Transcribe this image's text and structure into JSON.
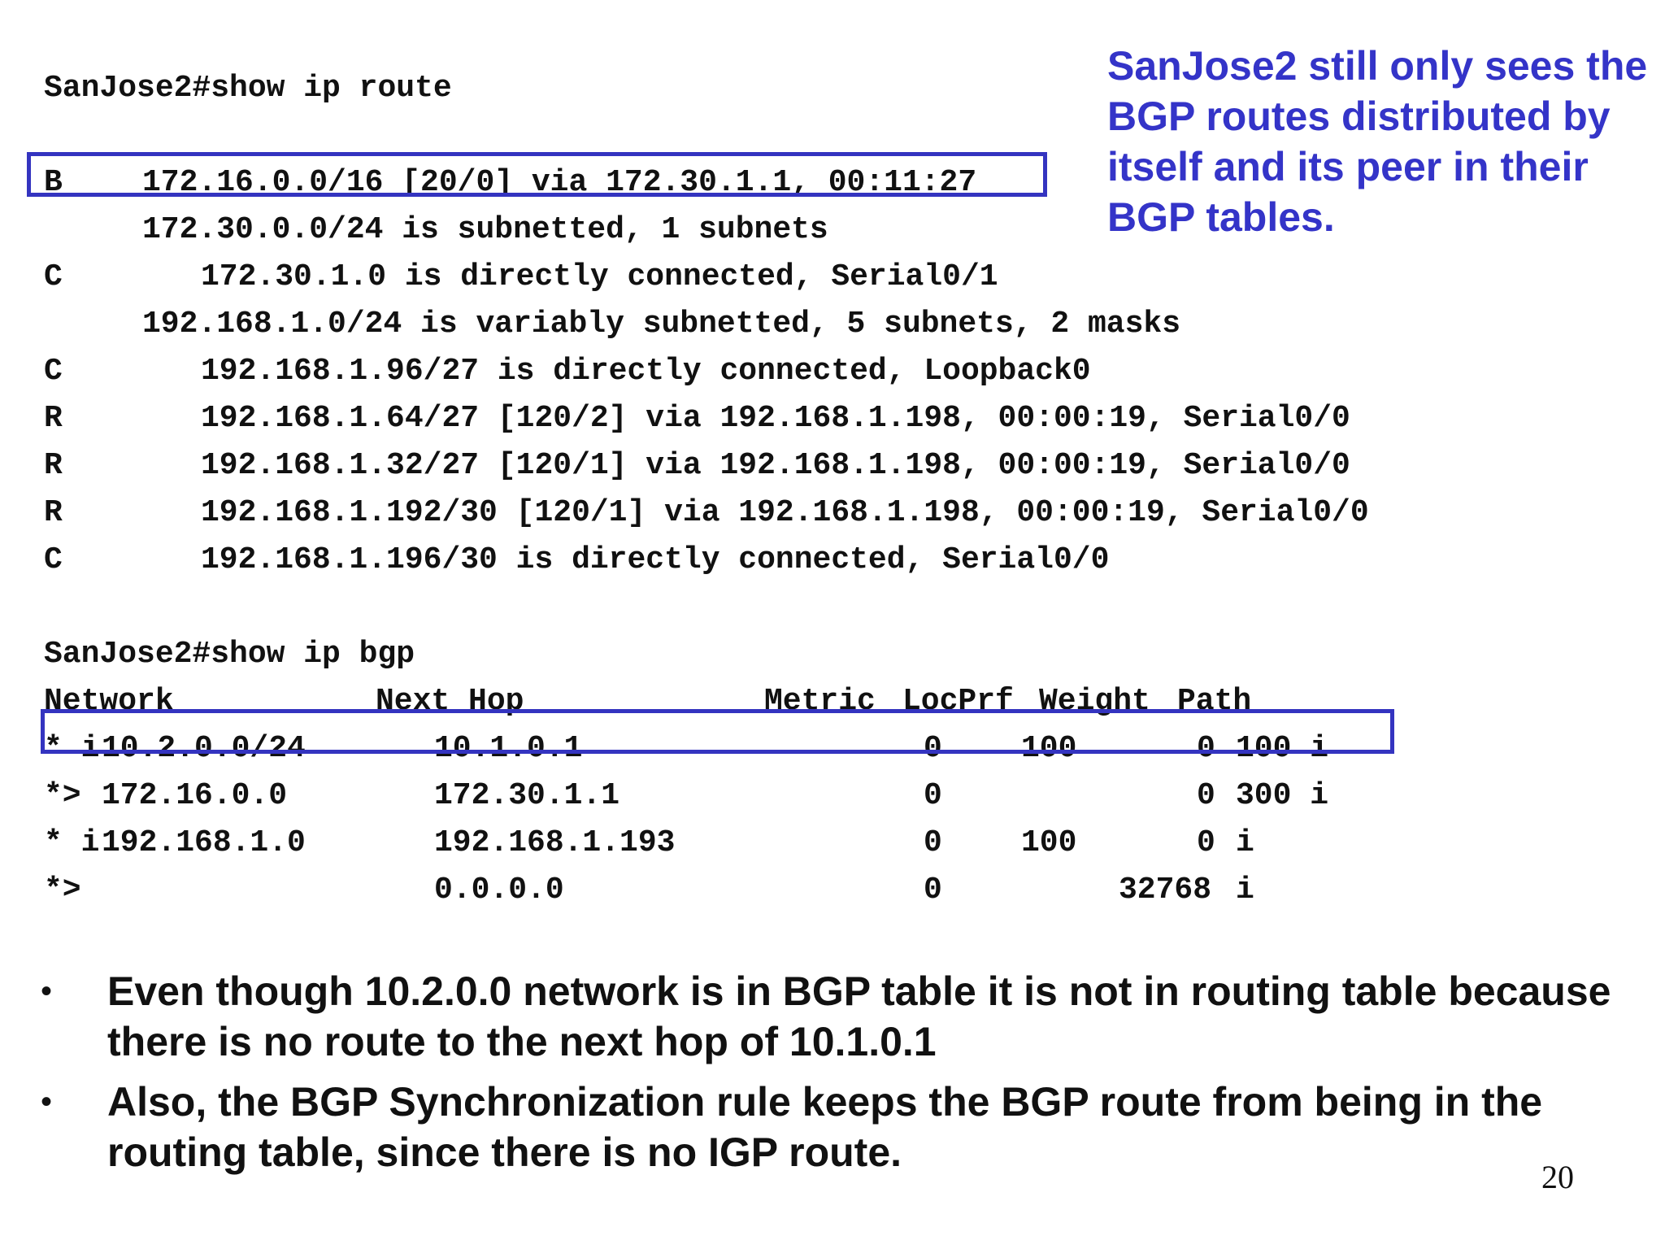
{
  "route": {
    "command": "SanJose2#show ip route",
    "rows": [
      {
        "code": "B",
        "text": "172.16.0.0/16 [20/0] via 172.30.1.1, 00:11:27"
      },
      {
        "code": "",
        "text": "172.30.0.0/24 is subnetted, 1 subnets"
      },
      {
        "code": "C",
        "text": "172.30.1.0 is directly connected, Serial0/1"
      },
      {
        "code": "",
        "text": "192.168.1.0/24 is variably subnetted, 5 subnets, 2 masks"
      },
      {
        "code": "C",
        "text": "192.168.1.96/27 is directly connected, Loopback0"
      },
      {
        "code": "R",
        "text": "192.168.1.64/27 [120/2] via 192.168.1.198, 00:00:19, Serial0/0"
      },
      {
        "code": "R",
        "text": "192.168.1.32/27 [120/1] via 192.168.1.198, 00:00:19, Serial0/0"
      },
      {
        "code": "R",
        "text": "192.168.1.192/30 [120/1] via 192.168.1.198, 00:00:19, Serial0/0"
      },
      {
        "code": "C",
        "text": "192.168.1.196/30 is directly connected, Serial0/0"
      }
    ]
  },
  "bgp": {
    "command": "SanJose2#show ip bgp",
    "headers": {
      "network": "Network",
      "next_hop": "Next Hop",
      "metric": "Metric",
      "locprf": "LocPrf",
      "weight": "Weight",
      "path": "Path"
    },
    "rows": [
      {
        "status": "* i",
        "network": "10.2.0.0/24",
        "next_hop": "10.1.0.1",
        "metric": "0",
        "locprf": "100",
        "weight": "0",
        "path": "100 i"
      },
      {
        "status": "*> ",
        "network": "172.16.0.0",
        "next_hop": "172.30.1.1",
        "metric": "0",
        "locprf": "",
        "weight": "0",
        "path": "300 i"
      },
      {
        "status": "* i",
        "network": "192.168.1.0",
        "next_hop": "192.168.1.193",
        "metric": "0",
        "locprf": "100",
        "weight": "0",
        "path": "i"
      },
      {
        "status": "*>",
        "network": "",
        "next_hop": "0.0.0.0",
        "metric": "0",
        "locprf": "",
        "weight": "32768",
        "path": "i"
      }
    ]
  },
  "callout": "SanJose2 still only sees the BGP routes distributed by itself and its peer in their BGP tables.",
  "bullets": [
    "Even though 10.2.0.0 network is in BGP table it is not in routing table because there is no route to the next hop of 10.1.0.1",
    "Also, the BGP Synchronization rule keeps the BGP route from being in the routing table, since there is no IGP route."
  ],
  "page_number": "20",
  "colors": {
    "accent": "#3434c8",
    "text": "#111111"
  }
}
